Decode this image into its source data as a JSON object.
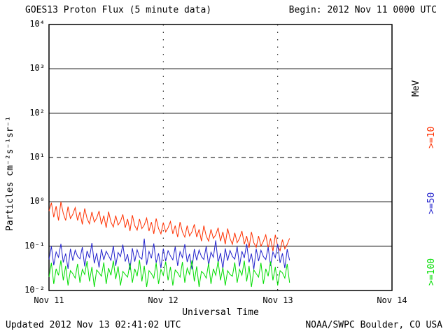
{
  "chart_data": {
    "type": "line",
    "title": "GOES13 Proton Flux (5 minute data)",
    "begin_label": "Begin: 2012 Nov 11 0000 UTC",
    "updated_label": "Updated 2012 Nov 13 02:41:02 UTC",
    "credit_label": "NOAA/SWPC Boulder, CO USA",
    "xlabel": "Universal Time",
    "ylabel": "Particles cm⁻²s⁻¹sr⁻¹",
    "right_axis_unit": "MeV",
    "x_range_hours": [
      0,
      72
    ],
    "x_ticks": [
      {
        "hour": 0,
        "label": "Nov 11"
      },
      {
        "hour": 24,
        "label": "Nov 12"
      },
      {
        "hour": 48,
        "label": "Nov 13"
      },
      {
        "hour": 72,
        "label": "Nov 14"
      }
    ],
    "x_gridline_hours": [
      24,
      48
    ],
    "y_log_range": [
      -2,
      4
    ],
    "y_ticks": [
      {
        "value": 10000,
        "label": "10⁴"
      },
      {
        "value": 1000,
        "label": "10³"
      },
      {
        "value": 100,
        "label": "10²"
      },
      {
        "value": 10,
        "label": "10¹"
      },
      {
        "value": 1,
        "label": "10⁰"
      },
      {
        "value": 0.1,
        "label": "10⁻¹"
      },
      {
        "value": 0.01,
        "label": "10⁻²"
      }
    ],
    "y_gridlines": [
      {
        "value": 1000,
        "dashed": false
      },
      {
        "value": 100,
        "dashed": false
      },
      {
        "value": 10,
        "dashed": true
      },
      {
        "value": 1,
        "dashed": false
      },
      {
        "value": 0.1,
        "dashed": false
      }
    ],
    "legend_position": "right",
    "series": [
      {
        "name": ">=10",
        "unit": "MeV",
        "color": "#ff3000",
        "t0_hours": 0,
        "dt_hours": 0.5,
        "values": [
          0.62,
          0.95,
          0.45,
          0.8,
          0.38,
          1.0,
          0.55,
          0.38,
          0.78,
          0.42,
          0.52,
          0.74,
          0.38,
          0.59,
          0.31,
          0.71,
          0.42,
          0.32,
          0.59,
          0.35,
          0.43,
          0.62,
          0.31,
          0.49,
          0.26,
          0.6,
          0.35,
          0.27,
          0.49,
          0.3,
          0.36,
          0.52,
          0.26,
          0.41,
          0.22,
          0.5,
          0.29,
          0.23,
          0.41,
          0.25,
          0.3,
          0.43,
          0.22,
          0.35,
          0.19,
          0.42,
          0.25,
          0.19,
          0.34,
          0.21,
          0.26,
          0.36,
          0.19,
          0.29,
          0.16,
          0.35,
          0.21,
          0.16,
          0.29,
          0.17,
          0.21,
          0.31,
          0.16,
          0.24,
          0.13,
          0.29,
          0.17,
          0.13,
          0.24,
          0.15,
          0.18,
          0.26,
          0.13,
          0.21,
          0.11,
          0.25,
          0.15,
          0.11,
          0.2,
          0.12,
          0.15,
          0.22,
          0.11,
          0.17,
          0.092,
          0.21,
          0.12,
          0.094,
          0.17,
          0.1,
          0.13,
          0.18,
          0.092,
          0.15,
          0.077,
          0.18,
          0.1,
          0.079,
          0.14,
          0.087,
          0.11,
          0.15
        ]
      },
      {
        "name": ">=50",
        "unit": "MeV",
        "color": "#2222cc",
        "t0_hours": 0,
        "dt_hours": 0.5,
        "values": [
          0.05,
          0.099,
          0.037,
          0.074,
          0.056,
          0.112,
          0.043,
          0.068,
          0.031,
          0.087,
          0.047,
          0.081,
          0.059,
          0.052,
          0.095,
          0.035,
          0.078,
          0.054,
          0.118,
          0.041,
          0.07,
          0.033,
          0.085,
          0.049,
          0.077,
          0.061,
          0.048,
          0.102,
          0.036,
          0.072,
          0.058,
          0.108,
          0.045,
          0.066,
          0.029,
          0.09,
          0.045,
          0.083,
          0.057,
          0.051,
          0.148,
          0.038,
          0.076,
          0.053,
          0.115,
          0.042,
          0.069,
          0.032,
          0.088,
          0.046,
          0.079,
          0.06,
          0.049,
          0.097,
          0.036,
          0.075,
          0.055,
          0.11,
          0.044,
          0.067,
          0.03,
          0.086,
          0.048,
          0.082,
          0.058,
          0.05,
          0.1,
          0.037,
          0.073,
          0.056,
          0.135,
          0.042,
          0.07,
          0.031,
          0.089,
          0.047,
          0.08,
          0.059,
          0.051,
          0.098,
          0.035,
          0.077,
          0.054,
          0.113,
          0.043,
          0.068,
          0.03,
          0.087,
          0.046,
          0.081,
          0.058,
          0.05,
          0.096,
          0.036,
          0.074,
          0.055,
          0.111,
          0.042,
          0.069,
          0.032,
          0.085,
          0.048
        ]
      },
      {
        "name": ">=100",
        "unit": "MeV",
        "color": "#00dd00",
        "t0_hours": 0,
        "dt_hours": 0.5,
        "values": [
          0.02,
          0.042,
          0.014,
          0.031,
          0.022,
          0.048,
          0.017,
          0.036,
          0.013,
          0.028,
          0.024,
          0.019,
          0.04,
          0.015,
          0.03,
          0.023,
          0.046,
          0.016,
          0.034,
          0.012,
          0.029,
          0.025,
          0.021,
          0.043,
          0.014,
          0.032,
          0.022,
          0.047,
          0.018,
          0.035,
          0.013,
          0.027,
          0.023,
          0.02,
          0.041,
          0.015,
          0.031,
          0.021,
          0.049,
          0.016,
          0.036,
          0.012,
          0.028,
          0.024,
          0.019,
          0.042,
          0.014,
          0.03,
          0.022,
          0.045,
          0.017,
          0.034,
          0.013,
          0.029,
          0.025,
          0.02,
          0.044,
          0.015,
          0.032,
          0.023,
          0.048,
          0.016,
          0.035,
          0.012,
          0.027,
          0.024,
          0.019,
          0.041,
          0.014,
          0.031,
          0.022,
          0.046,
          0.017,
          0.033,
          0.013,
          0.028,
          0.023,
          0.021,
          0.043,
          0.015,
          0.03,
          0.022,
          0.047,
          0.016,
          0.036,
          0.012,
          0.029,
          0.024,
          0.02,
          0.042,
          0.014,
          0.031,
          0.021,
          0.045,
          0.017,
          0.034,
          0.013,
          0.028,
          0.025,
          0.019,
          0.04,
          0.015
        ]
      }
    ]
  }
}
